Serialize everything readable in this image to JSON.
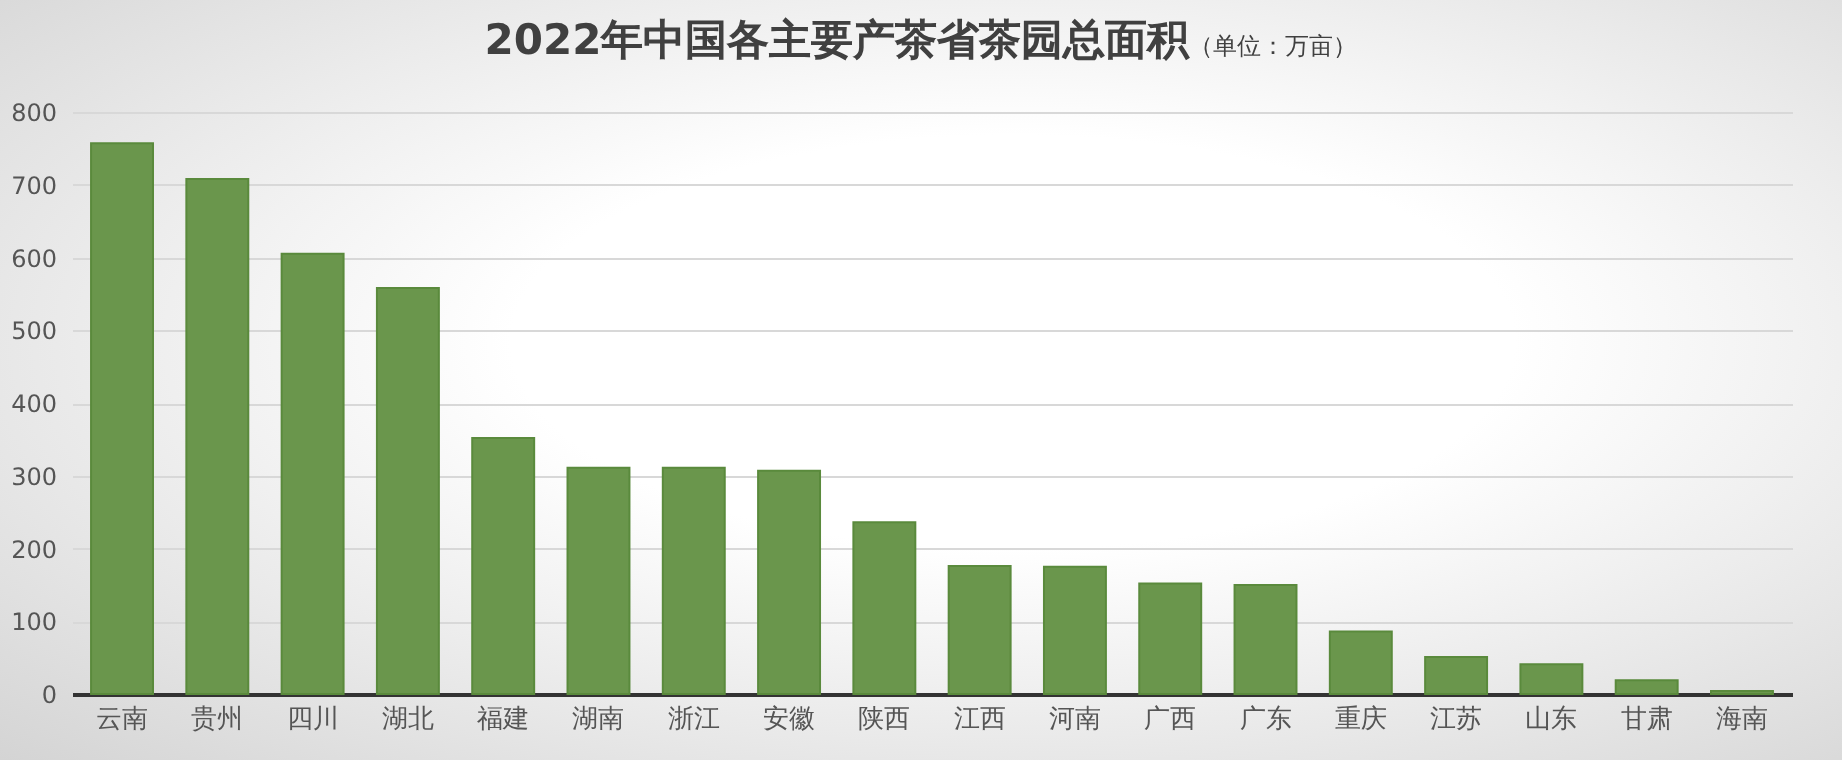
{
  "chart_data": {
    "type": "bar",
    "title": "2022年中国各主要产茶省茶园总面积",
    "subtitle": "（单位：万亩）",
    "categories": [
      "云南",
      "贵州",
      "四川",
      "湖北",
      "福建",
      "湖南",
      "浙江",
      "安徽",
      "陕西",
      "江西",
      "河南",
      "广西",
      "广东",
      "重庆",
      "江苏",
      "山东",
      "甘肃",
      "海南"
    ],
    "values": [
      757,
      708,
      605,
      558,
      352,
      311,
      311,
      307,
      236,
      176,
      175,
      152,
      150,
      86,
      51,
      41,
      19,
      4
    ],
    "color": "#6a964c",
    "ylim": [
      0,
      800
    ],
    "yticks": [
      0,
      100,
      200,
      300,
      400,
      500,
      600,
      700,
      800
    ],
    "grid": "y"
  }
}
